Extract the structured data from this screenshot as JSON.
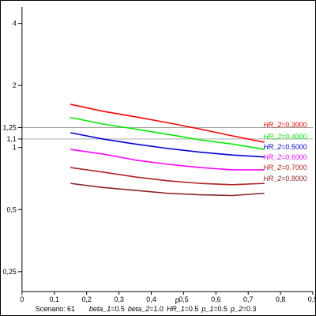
{
  "chart_data": {
    "type": "line",
    "xlabel": "ρ",
    "ylabel": "",
    "xlim": [
      0,
      0.9
    ],
    "ylim": [
      0.2,
      4.8
    ],
    "yscale": "log",
    "grid": false,
    "x_ticks": [
      0,
      0.1,
      0.2,
      0.3,
      0.4,
      0.5,
      0.6,
      0.7,
      0.8,
      0.9
    ],
    "x_tick_labels": [
      "0",
      "0,1",
      "0,2",
      "0,3",
      "0,4",
      "0,5",
      "0,6",
      "0,7",
      "0,8",
      "0,9"
    ],
    "y_ticks": [
      0.25,
      0.5,
      1,
      1.1,
      1.25,
      2,
      4
    ],
    "y_tick_labels": [
      "0,25",
      "0,5",
      "1",
      "1,1",
      "1,25",
      "2",
      "4"
    ],
    "reference_lines": [
      {
        "y": 1.25,
        "color": "#a0a0a0"
      },
      {
        "y": 1.1,
        "color": "#a0a0a0"
      }
    ],
    "series": [
      {
        "name": "HR_2=0.3000",
        "label_var": "HR_2",
        "label_val": "=0.3000",
        "color": "#ff0000",
        "x": [
          0.15,
          0.25,
          0.35,
          0.45,
          0.55,
          0.65,
          0.75
        ],
        "y": [
          1.62,
          1.5,
          1.41,
          1.32,
          1.23,
          1.14,
          1.06
        ]
      },
      {
        "name": "HR_2=0.4000",
        "label_var": "HR_2",
        "label_val": "=0.4000",
        "color": "#00ee00",
        "x": [
          0.15,
          0.25,
          0.35,
          0.45,
          0.55,
          0.65,
          0.75
        ],
        "y": [
          1.4,
          1.3,
          1.23,
          1.16,
          1.09,
          1.04,
          0.98
        ]
      },
      {
        "name": "HR_2=0.5000",
        "label_var": "HR_2",
        "label_val": "=0.5000",
        "color": "#0000dd",
        "x": [
          0.15,
          0.25,
          0.35,
          0.45,
          0.55,
          0.65,
          0.75
        ],
        "y": [
          1.18,
          1.1,
          1.04,
          0.99,
          0.95,
          0.92,
          0.9
        ]
      },
      {
        "name": "HR_2=0.6000",
        "label_var": "HR_2",
        "label_val": "=0.6000",
        "color": "#ff00ff",
        "x": [
          0.15,
          0.25,
          0.35,
          0.45,
          0.55,
          0.65,
          0.75
        ],
        "y": [
          0.98,
          0.93,
          0.87,
          0.83,
          0.8,
          0.78,
          0.78
        ]
      },
      {
        "name": "HR_2=0.7000",
        "label_var": "HR_2",
        "label_val": "=0.7000",
        "color": "#b22222",
        "x": [
          0.15,
          0.25,
          0.35,
          0.45,
          0.55,
          0.65,
          0.75
        ],
        "y": [
          0.8,
          0.76,
          0.72,
          0.69,
          0.67,
          0.66,
          0.67
        ]
      },
      {
        "name": "HR_2=0.8000",
        "label_var": "HR_2",
        "label_val": "=0.8000",
        "color": "#8b2323",
        "x": [
          0.15,
          0.25,
          0.35,
          0.45,
          0.55,
          0.65,
          0.75
        ],
        "y": [
          0.67,
          0.64,
          0.62,
          0.6,
          0.59,
          0.585,
          0.6
        ]
      }
    ]
  },
  "footer": {
    "scenario_label": "Scenario:",
    "scenario_value": "61",
    "params": [
      {
        "name": "beta_1",
        "value": "=0.5"
      },
      {
        "name": "beta_2",
        "value": "=1.0"
      },
      {
        "name": "HR_1",
        "value": "=0.5"
      },
      {
        "name": "p_1",
        "value": "=0.5"
      },
      {
        "name": "p_2",
        "value": "=0.3"
      }
    ]
  }
}
